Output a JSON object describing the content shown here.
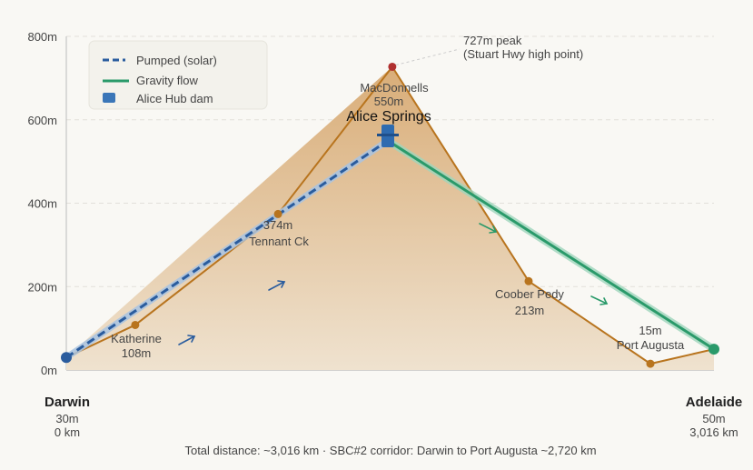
{
  "chart_data": {
    "type": "area",
    "title": "",
    "xlabel": "",
    "ylabel": "",
    "ylim": [
      0,
      800
    ],
    "xlim": [
      0,
      3016
    ],
    "grid": true,
    "y_ticks": [
      "0m",
      "200m",
      "400m",
      "600m",
      "800m"
    ],
    "y_tick_values": [
      0,
      200,
      400,
      600,
      800
    ],
    "legend": {
      "placement": "top-left",
      "items": [
        {
          "label": "Pumped (solar)",
          "style": "dashed",
          "color": "#2a5c9e"
        },
        {
          "label": "Gravity flow",
          "style": "solid",
          "color": "#2a9a6a"
        },
        {
          "label": "Alice Hub dam",
          "style": "square",
          "color": "#3a76b8"
        }
      ]
    },
    "terrain": [
      {
        "name": "Darwin",
        "km": 0,
        "elev": 30
      },
      {
        "name": "Katherine",
        "km": 321,
        "elev": 108
      },
      {
        "name": "Tennant Ck",
        "km": 986,
        "elev": 374
      },
      {
        "name": "MacDonnells peak",
        "km": 1518,
        "elev": 727
      },
      {
        "name": "Coober Pedy",
        "km": 2153,
        "elev": 213
      },
      {
        "name": "Port Augusta",
        "km": 2720,
        "elev": 15
      },
      {
        "name": "Adelaide",
        "km": 3016,
        "elev": 50
      }
    ],
    "pumped_series": {
      "from_km": 0,
      "from_elev": 30,
      "to_km": 1497,
      "to_elev": 550
    },
    "gravity_series": {
      "from_km": 1497,
      "to_km": 3016,
      "from_elev": 550,
      "to_elev": 50
    },
    "dam": {
      "km": 1497,
      "elev": 550
    },
    "labels": {
      "katherine": [
        "Katherine",
        "108m"
      ],
      "tennant": [
        "374m",
        "Tennant Ck"
      ],
      "macdonnells": [
        "MacDonnells",
        "550m"
      ],
      "alice": "Alice Springs",
      "peak": [
        "727m peak",
        "(Stuart Hwy high point)"
      ],
      "coober": [
        "Coober Pedy",
        "213m"
      ],
      "port_augusta": [
        "15m",
        "Port Augusta"
      ]
    },
    "endpoints": {
      "start": {
        "name": "Darwin",
        "elev": "30m",
        "dist": "0 km"
      },
      "end": {
        "name": "Adelaide",
        "elev": "50m",
        "dist": "3,016 km"
      }
    },
    "footer": "Total distance: ~3,016 km · SBC#2 corridor: Darwin to Port Augusta ~2,720 km",
    "colors": {
      "terrain_line": "#b8741e",
      "terrain_fill_top": "#d9ad78",
      "terrain_fill_bottom": "#efe2cf",
      "pumped": "#2a5c9e",
      "gravity": "#2a9a6a",
      "peak": "#b03030",
      "dam": "#3a76b8"
    }
  }
}
